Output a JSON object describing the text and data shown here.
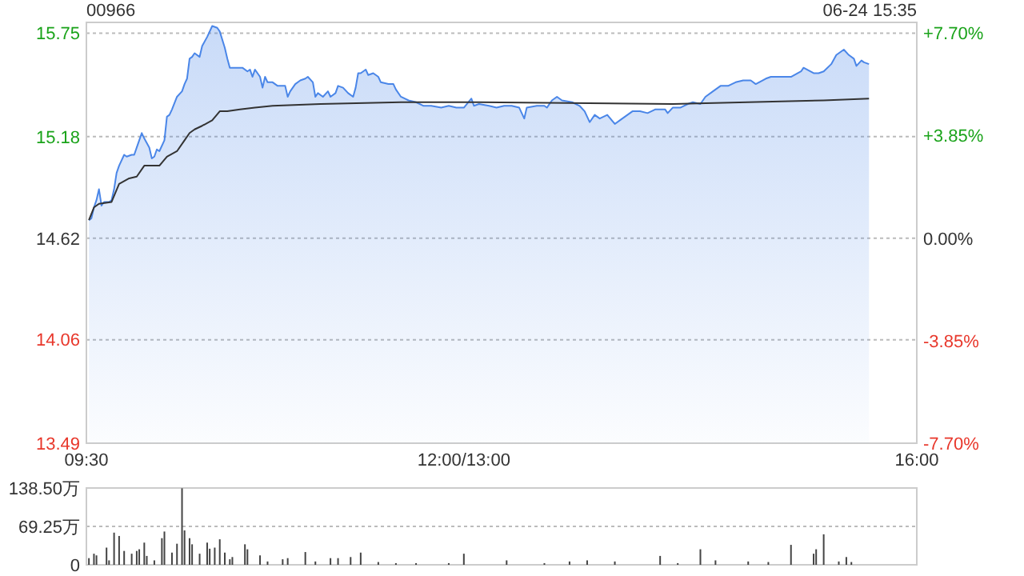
{
  "chart_data": [
    {
      "type": "area",
      "title": "00966",
      "subtitle": "06-24 15:35",
      "categories": [
        "09:30",
        null,
        null,
        null,
        null,
        null,
        null,
        null,
        null,
        null,
        null,
        null,
        null,
        null,
        null,
        null,
        null,
        null,
        null,
        null,
        null,
        null,
        null,
        null,
        null,
        null,
        null,
        null,
        null,
        null,
        null,
        null,
        null,
        null,
        null,
        null,
        null,
        null,
        null,
        null,
        null,
        null,
        null,
        null,
        null,
        null,
        null,
        null,
        null,
        null,
        null,
        null,
        null,
        null,
        null,
        null,
        null,
        null,
        null,
        null,
        null,
        null,
        null,
        null,
        null,
        null,
        null,
        null,
        null,
        null,
        null,
        null,
        null,
        null,
        null,
        null,
        null,
        null,
        null,
        null,
        null,
        null,
        null,
        null,
        null,
        null,
        null,
        null,
        null,
        null,
        null,
        null,
        null,
        null,
        null,
        null,
        null,
        null,
        null,
        null,
        null,
        null,
        null,
        null,
        null,
        null,
        null,
        null,
        null,
        null,
        null,
        null,
        null,
        null,
        null,
        null,
        null,
        null,
        null,
        null,
        null,
        null,
        null,
        null,
        null,
        null,
        null,
        null,
        null,
        null,
        null,
        null,
        null,
        null,
        null,
        null,
        null,
        null,
        null,
        null,
        null,
        null,
        null,
        null,
        null,
        null,
        null,
        null,
        null,
        null,
        "12:00/13:00",
        null,
        null,
        null,
        null,
        null,
        null,
        null,
        null,
        null,
        null,
        null,
        null,
        null,
        null,
        null,
        null,
        null,
        null,
        null,
        null,
        null,
        null,
        null,
        null,
        null,
        null,
        null,
        null,
        null,
        null,
        null,
        null,
        null,
        null,
        null,
        null,
        null,
        null,
        null,
        null,
        null,
        null,
        null,
        null,
        null,
        null,
        null,
        null,
        null,
        null,
        null,
        null,
        null,
        null,
        null,
        null,
        null,
        null,
        null,
        null,
        null,
        null,
        null,
        null,
        null,
        null,
        null,
        null,
        null,
        null,
        null,
        null,
        null,
        null,
        null,
        null,
        null,
        null,
        null,
        null,
        null,
        null,
        null,
        null,
        null,
        null,
        null,
        null,
        null,
        null,
        null,
        null,
        null,
        null,
        null,
        null,
        null,
        null,
        null,
        null,
        null,
        null,
        null,
        null,
        null,
        null,
        null,
        null,
        null,
        null,
        null,
        null,
        null,
        null,
        null,
        null,
        null,
        null,
        null,
        null,
        null,
        null,
        null,
        null,
        null,
        null,
        null,
        null,
        null,
        null,
        null,
        null,
        null,
        null,
        null,
        null,
        null,
        null,
        null,
        null,
        null,
        null,
        null,
        null,
        null,
        null,
        null,
        null,
        null,
        null,
        null,
        null,
        null,
        null,
        null,
        null,
        null,
        null,
        null,
        null,
        null,
        null,
        null,
        null,
        null,
        null,
        null,
        null,
        null,
        null,
        null,
        null,
        null,
        null,
        null,
        null,
        null,
        null,
        null,
        "16:00"
      ],
      "ylim": [
        13.49,
        15.81
      ],
      "yticks": [
        13.49,
        14.06,
        14.62,
        15.18,
        15.75
      ],
      "y2lim": [
        -7.7,
        8.11
      ],
      "y2ticks": [
        {
          "value": -7.7,
          "label": "-7.70%"
        },
        {
          "value": -3.85,
          "label": "-3.85%"
        },
        {
          "value": 0,
          "label": "0.00%"
        },
        {
          "value": 3.85,
          "label": "+3.85%"
        },
        {
          "value": 7.7,
          "label": "+7.70%"
        }
      ],
      "grid": "y",
      "series": [
        {
          "color": "#4a86e8",
          "values": [
            null,
            14.72,
            14.73,
            14.79,
            14.83,
            14.89,
            14.8,
            14.82,
            null,
            14.82,
            14.83,
            14.89,
            14.98,
            15.02,
            null,
            15.08,
            15.07,
            null,
            15.08,
            15.08,
            15.12,
            null,
            15.2,
            15.17,
            null,
            15.12,
            15.06,
            15.07,
            15.11,
            15.1,
            null,
            15.16,
            15.29,
            15.3,
            15.33,
            null,
            15.4,
            null,
            15.43,
            15.47,
            15.5,
            15.61,
            15.62,
            15.64,
            null,
            15.62,
            15.68,
            null,
            15.73,
            null,
            15.79,
            null,
            15.78,
            15.76,
            null,
            15.67,
            15.61,
            15.56,
            15.56,
            null,
            15.56,
            null,
            15.56,
            null,
            15.54,
            15.55,
            15.51,
            15.55,
            null,
            15.51,
            15.45,
            15.51,
            15.48,
            null,
            15.48,
            null,
            15.46,
            null,
            null,
            15.46,
            15.4,
            15.43,
            null,
            15.47,
            null,
            15.49,
            null,
            15.5,
            15.51,
            null,
            15.48,
            15.4,
            15.42,
            null,
            15.4,
            null,
            15.43,
            15.4,
            null,
            15.42,
            15.46,
            null,
            15.45,
            null,
            15.42,
            null,
            15.4,
            15.45,
            15.53,
            15.53,
            null,
            15.55,
            15.52,
            null,
            15.53,
            null,
            15.51,
            15.48,
            null,
            null,
            15.47,
            null,
            15.47,
            15.44,
            null,
            15.4,
            null,
            null,
            15.38,
            null,
            null,
            15.37,
            null,
            null,
            15.35,
            null,
            null,
            15.35,
            null,
            null,
            null,
            15.34,
            null,
            null,
            15.35,
            null,
            null,
            15.34,
            null,
            null,
            15.34,
            null,
            null,
            15.39,
            15.35,
            null,
            15.36,
            null,
            null,
            null,
            15.35,
            null,
            null,
            15.34,
            null,
            null,
            15.35,
            null,
            null,
            15.35,
            null,
            null,
            15.34,
            null,
            15.28,
            15.34,
            null,
            null,
            null,
            15.35,
            null,
            null,
            15.35,
            15.34,
            null,
            15.38,
            null,
            15.4,
            null,
            15.38,
            null,
            null,
            null,
            15.37,
            null,
            null,
            15.35,
            null,
            15.32,
            null,
            15.26,
            null,
            15.3,
            null,
            15.28,
            null,
            null,
            15.3,
            null,
            null,
            15.25,
            null,
            15.27,
            null,
            null,
            15.3,
            null,
            15.32,
            null,
            null,
            15.32,
            null,
            null,
            15.31,
            null,
            null,
            15.33,
            null,
            null,
            null,
            15.33,
            15.31,
            null,
            15.34,
            null,
            null,
            15.34,
            null,
            null,
            15.36,
            null,
            15.37,
            null,
            null,
            15.36,
            null,
            15.4,
            null,
            null,
            15.43,
            null,
            null,
            15.46,
            null,
            null,
            15.46,
            null,
            null,
            15.48,
            null,
            null,
            15.49,
            null,
            null,
            15.49,
            null,
            15.47,
            null,
            null,
            null,
            15.5,
            null,
            15.51,
            null,
            null,
            null,
            15.51,
            null,
            null,
            null,
            15.51,
            null,
            null,
            null,
            15.54,
            15.56,
            null,
            null,
            null,
            15.53,
            null,
            15.53,
            null,
            15.54,
            null,
            null,
            15.58,
            null,
            15.63,
            15.64,
            null,
            15.66,
            null,
            15.63,
            null,
            15.61,
            15.57,
            null,
            15.6,
            15.59,
            null,
            15.58,
            null,
            null,
            null,
            null,
            null,
            null,
            null,
            null,
            null,
            null,
            null,
            null,
            null,
            null,
            null,
            null,
            null,
            null,
            null
          ]
        },
        {
          "type": "line",
          "color": "#333333",
          "values": [
            null,
            14.72,
            null,
            14.79,
            null,
            14.81,
            null,
            null,
            null,
            null,
            14.82,
            null,
            null,
            14.92,
            null,
            null,
            null,
            14.95,
            null,
            null,
            14.96,
            null,
            null,
            15.02,
            null,
            null,
            15.02,
            null,
            null,
            15.02,
            null,
            null,
            15.07,
            null,
            null,
            null,
            15.1,
            null,
            null,
            15.16,
            null,
            15.2,
            null,
            15.22,
            null,
            null,
            15.24,
            null,
            null,
            null,
            15.27,
            null,
            null,
            15.32,
            null,
            null,
            15.32,
            null,
            null,
            null,
            null,
            15.33,
            null,
            null,
            null,
            null,
            null,
            15.34,
            null,
            null,
            null,
            null,
            null,
            null,
            15.35,
            null,
            null,
            null,
            null,
            null,
            null,
            null,
            null,
            null,
            null,
            null,
            null,
            null,
            null,
            null,
            null,
            null,
            null,
            15.36,
            null,
            null,
            null,
            null,
            null,
            null,
            null,
            null,
            null,
            null,
            null,
            null,
            null,
            null,
            null,
            null,
            null,
            null,
            null,
            null,
            null,
            null,
            null,
            null,
            null,
            null,
            null,
            null,
            null,
            null,
            null,
            15.37,
            null,
            null,
            null,
            null,
            null,
            null,
            null,
            null,
            null,
            null,
            null,
            null,
            null,
            null,
            null,
            null,
            null,
            null,
            null,
            null,
            null,
            null,
            null,
            null,
            null,
            null,
            null,
            null,
            null,
            null,
            15.37,
            null,
            null,
            null,
            null,
            null,
            null,
            null,
            null,
            null,
            null,
            null,
            null,
            null,
            null,
            null,
            null,
            null,
            null,
            null,
            null,
            null,
            null,
            null,
            null,
            null,
            null,
            null,
            null,
            null,
            null,
            null,
            null,
            null,
            null,
            null,
            null,
            null,
            null,
            null,
            null,
            null,
            null,
            null,
            null,
            null,
            null,
            null,
            null,
            null,
            null,
            null,
            null,
            null,
            null,
            null,
            null,
            null,
            null,
            null,
            null,
            null,
            null,
            null,
            null,
            null,
            null,
            null,
            null,
            null,
            null,
            null,
            null,
            null,
            null,
            null,
            null,
            15.36,
            null,
            null,
            null,
            null,
            null,
            null,
            null,
            null,
            null,
            null,
            null,
            null,
            null,
            null,
            null,
            null,
            null,
            null,
            null,
            null,
            null,
            null,
            null,
            null,
            null,
            null,
            null,
            null,
            null,
            null,
            null,
            null,
            null,
            null,
            null,
            null,
            null,
            null,
            null,
            null,
            null,
            null,
            null,
            null,
            null,
            null,
            null,
            null,
            null,
            null,
            null,
            null,
            null,
            null,
            null,
            null,
            null,
            null,
            null,
            15.38,
            null,
            null,
            null,
            null,
            null,
            null,
            null,
            null,
            null,
            null,
            null,
            null,
            null,
            null,
            null,
            null,
            null,
            15.39,
            null,
            null,
            null,
            null,
            null,
            null,
            null,
            null,
            null,
            null,
            null,
            null,
            null,
            null,
            null,
            null,
            null,
            null,
            null
          ]
        }
      ]
    },
    {
      "type": "bar",
      "categories": [
        null,
        null,
        null,
        null,
        null,
        null,
        null,
        null,
        null,
        null,
        null,
        null,
        null,
        null,
        null,
        null,
        null,
        null,
        null,
        null,
        null,
        null,
        null,
        null,
        null,
        null,
        null,
        null,
        null,
        null,
        null,
        null,
        null,
        null,
        null,
        null,
        null,
        null,
        null,
        null,
        null,
        null,
        null,
        null,
        null,
        null,
        null,
        null,
        null,
        null,
        null,
        null,
        null,
        null,
        null,
        null,
        null,
        null,
        null,
        null,
        null,
        null,
        null,
        null,
        null,
        null,
        null,
        null,
        null,
        null,
        null,
        null,
        null,
        null,
        null,
        null,
        null,
        null,
        null,
        null,
        null,
        null,
        null,
        null,
        null,
        null,
        null,
        null,
        null,
        null,
        null,
        null,
        null,
        null,
        null,
        null,
        null,
        null,
        null,
        null,
        null,
        null,
        null,
        null,
        null,
        null,
        null,
        null,
        null,
        null,
        null,
        null,
        null,
        null,
        null,
        null,
        null,
        null,
        null,
        null,
        null,
        null,
        null,
        null,
        null,
        null,
        null,
        null,
        null,
        null,
        null,
        null,
        null,
        null,
        null,
        null,
        null,
        null,
        null,
        null,
        null,
        null,
        null,
        null,
        null,
        null,
        null,
        null,
        null,
        null,
        null,
        null,
        null,
        null,
        null,
        null,
        null,
        null,
        null,
        null,
        null,
        null,
        null,
        null,
        null,
        null,
        null,
        null,
        null,
        null,
        null,
        null,
        null,
        null,
        null,
        null,
        null,
        null,
        null,
        null,
        null,
        null,
        null,
        null,
        null,
        null,
        null,
        null,
        null,
        null,
        null,
        null,
        null,
        null,
        null,
        null,
        null,
        null,
        null,
        null,
        null,
        null,
        null,
        null,
        null,
        null,
        null,
        null,
        null,
        null,
        null,
        null,
        null,
        null,
        null,
        null,
        null,
        null,
        null,
        null,
        null,
        null,
        null,
        null,
        null,
        null,
        null,
        null,
        null,
        null,
        null,
        null,
        null,
        null,
        null,
        null,
        null,
        null,
        null,
        null,
        null,
        null,
        null,
        null,
        null,
        null,
        null,
        null,
        null,
        null,
        null,
        null,
        null,
        null,
        null,
        null,
        null,
        null,
        null,
        null,
        null,
        null,
        null,
        null,
        null,
        null,
        null,
        null,
        null,
        null,
        null,
        null,
        null,
        null,
        null,
        null,
        null,
        null,
        null,
        null,
        null,
        null,
        null,
        null,
        null,
        null,
        null,
        null,
        null,
        null,
        null,
        null,
        null,
        null,
        null,
        null,
        null,
        null,
        null,
        null,
        null,
        null,
        null,
        null,
        null,
        null,
        null,
        null,
        null,
        null,
        null,
        null,
        null,
        null,
        null,
        null,
        null,
        null,
        null,
        null,
        null,
        null,
        null,
        null,
        null,
        null,
        null,
        null,
        null,
        null,
        null
      ],
      "ylim": [
        0,
        138.5
      ],
      "yticks": [
        {
          "value": 0,
          "label": "0"
        },
        {
          "value": 69.25,
          "label": "69.25万"
        },
        {
          "value": 138.5,
          "label": "138.50万"
        }
      ],
      "tick_labels": "y",
      "grid": "y",
      "series": [
        {
          "color": "#444444",
          "values": [
            null,
            12,
            null,
            20,
            17,
            null,
            null,
            null,
            31,
            8,
            null,
            58,
            null,
            52,
            null,
            25,
            null,
            null,
            20,
            null,
            25,
            28,
            null,
            40,
            16,
            null,
            null,
            8,
            null,
            null,
            48,
            60,
            null,
            null,
            22,
            null,
            38,
            null,
            138,
            62,
            null,
            48,
            37,
            null,
            null,
            20,
            null,
            null,
            40,
            29,
            null,
            31,
            null,
            46,
            null,
            22,
            null,
            10,
            14,
            null,
            null,
            null,
            null,
            37,
            28,
            null,
            null,
            null,
            null,
            17,
            null,
            null,
            6,
            null,
            null,
            null,
            null,
            null,
            10,
            null,
            12,
            null,
            null,
            null,
            null,
            null,
            null,
            23,
            null,
            null,
            null,
            6,
            null,
            null,
            null,
            null,
            null,
            12,
            null,
            null,
            12,
            null,
            null,
            null,
            null,
            14,
            null,
            null,
            null,
            22,
            null,
            null,
            null,
            null,
            null,
            null,
            5,
            null,
            null,
            null,
            null,
            null,
            null,
            3,
            null,
            null,
            null,
            null,
            null,
            null,
            null,
            3,
            null,
            null,
            null,
            null,
            null,
            null,
            null,
            null,
            null,
            null,
            null,
            null,
            3,
            null,
            null,
            null,
            null,
            null,
            20,
            null,
            null,
            null,
            null,
            null,
            null,
            null,
            null,
            null,
            null,
            null,
            null,
            null,
            null,
            null,
            null,
            8,
            null,
            null,
            null,
            null,
            null,
            null,
            null,
            null,
            null,
            null,
            null,
            null,
            null,
            null,
            3,
            null,
            null,
            null,
            null,
            null,
            null,
            null,
            null,
            null,
            6,
            null,
            null,
            null,
            null,
            null,
            null,
            8,
            null,
            null,
            null,
            null,
            null,
            null,
            null,
            null,
            null,
            null,
            6,
            null,
            null,
            null,
            null,
            null,
            null,
            null,
            null,
            null,
            null,
            null,
            null,
            null,
            null,
            null,
            null,
            null,
            16,
            null,
            null,
            null,
            null,
            null,
            null,
            3,
            null,
            null,
            null,
            null,
            null,
            null,
            null,
            null,
            28,
            null,
            null,
            null,
            null,
            null,
            8,
            null,
            null,
            null,
            null,
            null,
            null,
            null,
            null,
            null,
            null,
            null,
            null,
            6,
            null,
            null,
            null,
            null,
            null,
            null,
            null,
            5,
            null,
            null,
            null,
            null,
            null,
            null,
            null,
            null,
            36,
            null,
            null,
            null,
            null,
            null,
            null,
            null,
            null,
            20,
            28,
            null,
            null,
            55,
            null,
            null,
            null,
            null,
            null,
            6,
            null,
            null,
            14,
            null,
            5,
            null,
            null,
            null,
            null,
            null,
            null,
            null,
            null,
            null,
            null,
            null,
            null,
            null,
            null,
            null,
            null,
            null,
            null,
            null,
            null,
            null,
            null,
            null,
            null,
            null,
            null
          ]
        }
      ]
    }
  ]
}
